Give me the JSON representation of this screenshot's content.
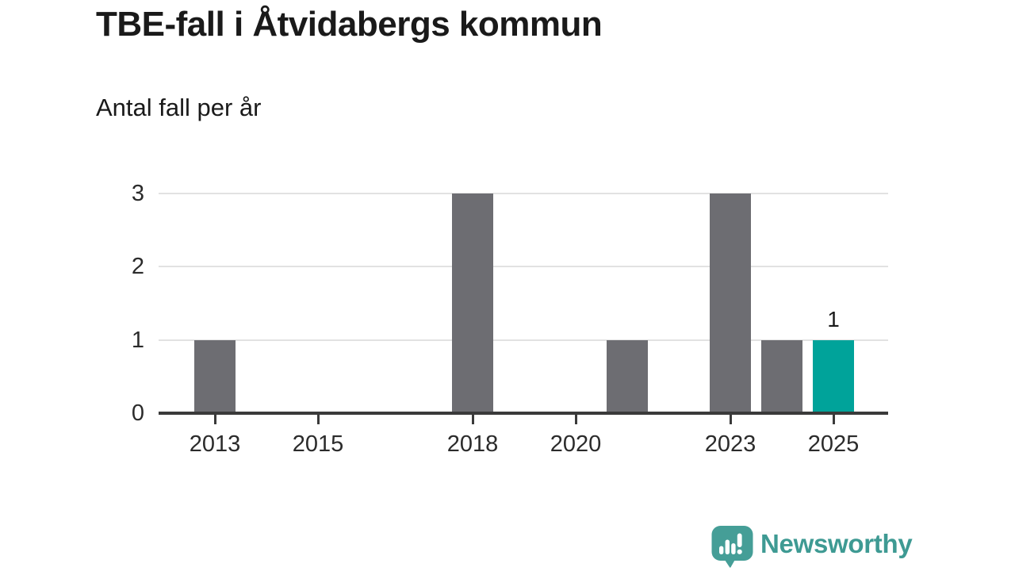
{
  "header": {
    "title": "TBE-fall i Åtvidabergs kommun",
    "subtitle": "Antal fall per år"
  },
  "chart_data": {
    "type": "bar",
    "title": "TBE-fall i Åtvidabergs kommun",
    "subtitle": "Antal fall per år",
    "categories": [
      2013,
      2014,
      2015,
      2016,
      2017,
      2018,
      2019,
      2020,
      2021,
      2022,
      2023,
      2024,
      2025
    ],
    "values": [
      1,
      0,
      0,
      0,
      0,
      3,
      0,
      0,
      1,
      0,
      3,
      1,
      1
    ],
    "highlight_category": 2025,
    "data_labels": {
      "2025": "1"
    },
    "x_ticks": [
      2013,
      2015,
      2018,
      2020,
      2023,
      2025
    ],
    "y_ticks": [
      0,
      1,
      2,
      3
    ],
    "ylim": [
      0,
      3
    ],
    "grid": "horizontal-only",
    "legend": "none",
    "colors": {
      "bar": "#6d6d72",
      "highlight_bar": "#00a39a",
      "gridline": "#e2e2e2",
      "axis": "#3a3a3a",
      "title_text": "#1a1a1a",
      "tick_text": "#2b2b2b"
    }
  },
  "footer": {
    "brand": "Newsworthy",
    "logo_icon": "newsworthy-speech-bubble-chart-icon",
    "brand_color": "#3e9a93",
    "logo_fill": "#459e97"
  }
}
